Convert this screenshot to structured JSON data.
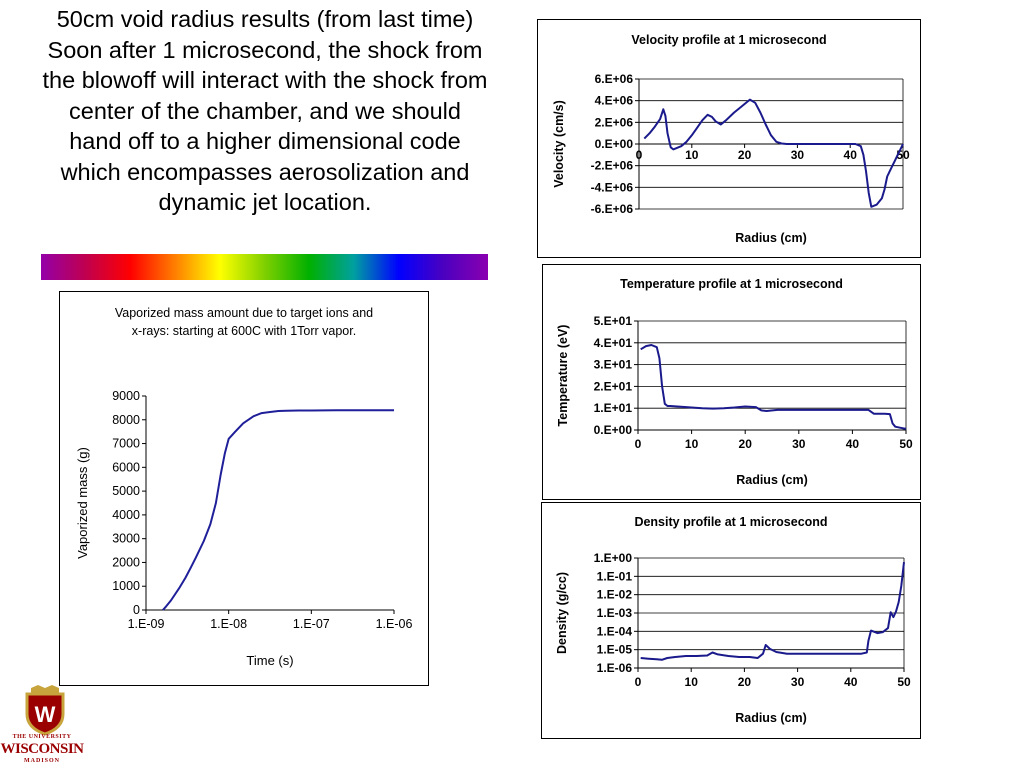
{
  "slide": {
    "title": "50cm void radius results (from last time) Soon after 1 microsecond, the shock from the blowoff will interact with the shock from center of the chamber, and we should hand off to a higher dimensional code which encompasses aerosolization and dynamic jet location."
  },
  "logo": {
    "line1": "THE UNIVERSITY",
    "line2": "WISCONSIN",
    "line3": "MADISON",
    "crest_letter": "W",
    "color": "#9b0000"
  },
  "colors": {
    "line": "#1a1a8c",
    "mass_line": "#1f1f99",
    "spectrum": [
      "#9400a8",
      "#c0004f",
      "#ff0000",
      "#ff7f00",
      "#ffff00",
      "#80d000",
      "#00b000",
      "#00a0a0",
      "#0000ff",
      "#4b00c0",
      "#8a00b0"
    ]
  },
  "chart_data": [
    {
      "id": "velocity",
      "type": "line",
      "title": "Velocity profile at 1 microsecond",
      "xlabel": "Radius (cm)",
      "ylabel": "Velocity (cm/s)",
      "xlim": [
        0,
        50
      ],
      "ylim": [
        -6000000,
        6000000
      ],
      "xticks": [
        "0",
        "10",
        "20",
        "30",
        "40",
        "50"
      ],
      "yticks": [
        "6.E+06",
        "4.E+06",
        "2.E+06",
        "0.E+00",
        "-2.E+06",
        "-4.E+06",
        "-6.E+06"
      ],
      "grid": true,
      "series": [
        {
          "x": [
            1,
            2,
            3,
            4,
            4.6,
            5,
            5.4,
            6,
            6.5,
            7,
            8,
            9,
            10,
            11,
            12,
            13,
            13.8,
            14.5,
            15.5,
            16.5,
            18,
            19.5,
            21,
            22,
            23,
            24,
            25,
            26,
            27,
            28,
            30,
            32,
            35,
            38,
            41,
            42,
            42.5,
            43,
            43.5,
            44,
            45,
            46,
            46.5,
            47,
            47.5,
            48,
            48.5,
            49,
            49.5,
            50
          ],
          "y": [
            500000,
            1000000,
            1600000,
            2300000,
            3200000,
            2600000,
            1000000,
            -300000,
            -500000,
            -400000,
            -200000,
            200000,
            800000,
            1500000,
            2200000,
            2700000,
            2500000,
            2100000,
            1800000,
            2200000,
            2900000,
            3500000,
            4100000,
            3800000,
            2900000,
            1800000,
            800000,
            200000,
            50000,
            0,
            0,
            0,
            0,
            0,
            0,
            -200000,
            -1000000,
            -2500000,
            -4500000,
            -5800000,
            -5600000,
            -5000000,
            -4200000,
            -3000000,
            -2500000,
            -2000000,
            -1500000,
            -1000000,
            -500000,
            0
          ]
        }
      ]
    },
    {
      "id": "temperature",
      "type": "line",
      "title": "Temperature profile at 1 microsecond",
      "xlabel": "Radius (cm)",
      "ylabel": "Temperature (eV)",
      "xlim": [
        0,
        50
      ],
      "ylim": [
        0,
        50
      ],
      "xticks": [
        "0",
        "10",
        "20",
        "30",
        "40",
        "50"
      ],
      "yticks": [
        "5.E+01",
        "4.E+01",
        "3.E+01",
        "2.E+01",
        "1.E+01",
        "0.E+00"
      ],
      "grid": true,
      "series": [
        {
          "x": [
            0.5,
            1.5,
            2.5,
            3.5,
            4,
            4.5,
            5,
            5.5,
            6,
            8,
            10,
            12,
            14,
            16,
            18,
            20,
            22,
            23,
            24,
            26,
            30,
            35,
            40,
            43,
            44,
            46,
            47,
            47.5,
            48,
            49,
            50
          ],
          "y": [
            37,
            38.5,
            39,
            38,
            33,
            20,
            12,
            11,
            11,
            10.7,
            10.3,
            10,
            9.8,
            10,
            10.3,
            10.8,
            10.5,
            9,
            8.7,
            9.2,
            9.2,
            9.2,
            9.2,
            9.2,
            7.5,
            7.5,
            7.3,
            3,
            1.5,
            1.0,
            0.5
          ]
        }
      ]
    },
    {
      "id": "density",
      "type": "line",
      "title": "Density profile at 1 microsecond",
      "xlabel": "Radius (cm)",
      "ylabel": "Density (g/cc)",
      "xlim": [
        0,
        50
      ],
      "yscale": "log",
      "ylim": [
        1e-06,
        1
      ],
      "xticks": [
        "0",
        "10",
        "20",
        "30",
        "40",
        "50"
      ],
      "yticks": [
        "1.E+00",
        "1.E-01",
        "1.E-02",
        "1.E-03",
        "1.E-04",
        "1.E-05",
        "1.E-06"
      ],
      "grid": true,
      "series": [
        {
          "x": [
            0.5,
            2,
            3.5,
            4.5,
            5.5,
            7,
            9,
            11,
            13,
            14,
            15,
            17,
            19,
            21,
            22.5,
            23.5,
            24,
            24.8,
            26,
            28,
            32,
            38,
            42,
            43,
            43.3,
            43.8,
            45,
            46,
            47,
            47.5,
            48,
            48.5,
            49,
            49.5,
            50
          ],
          "y": [
            3.5e-06,
            3.2e-06,
            3e-06,
            2.8e-06,
            3.5e-06,
            4e-06,
            4.5e-06,
            4.5e-06,
            4.8e-06,
            7e-06,
            5.5e-06,
            4.5e-06,
            4e-06,
            4e-06,
            3.5e-06,
            6e-06,
            1.8e-05,
            1.1e-05,
            7.5e-06,
            6e-06,
            6e-06,
            6e-06,
            6e-06,
            7e-06,
            3e-05,
            0.00011,
            8e-05,
            9e-05,
            0.00015,
            0.0011,
            0.0006,
            0.0012,
            0.004,
            0.03,
            0.6
          ]
        }
      ]
    },
    {
      "id": "vaporized-mass",
      "type": "line",
      "title": "Vaporized mass amount due to target ions and x-rays:  starting at 600C with 1Torr vapor.",
      "xlabel": "Time (s)",
      "ylabel": "Vaporized mass (g)",
      "xscale": "log",
      "xlim": [
        1e-09,
        1e-06
      ],
      "ylim": [
        0,
        9000
      ],
      "xticks": [
        "1.E-09",
        "1.E-08",
        "1.E-07",
        "1.E-06"
      ],
      "yticks": [
        "9000",
        "8000",
        "7000",
        "6000",
        "5000",
        "4000",
        "3000",
        "2000",
        "1000",
        "0"
      ],
      "grid": false,
      "series": [
        {
          "x": [
            1.6e-09,
            1.75e-09,
            2e-09,
            2.5e-09,
            3e-09,
            3.5e-09,
            4e-09,
            5e-09,
            6e-09,
            7e-09,
            8e-09,
            9e-09,
            1e-08,
            1.2e-08,
            1.5e-08,
            2e-08,
            2.5e-08,
            3e-08,
            4e-08,
            5e-08,
            7e-08,
            1e-07,
            2e-07,
            5e-07,
            1e-06
          ],
          "y": [
            0,
            150,
            400,
            900,
            1350,
            1800,
            2200,
            2900,
            3600,
            4500,
            5700,
            6600,
            7200,
            7500,
            7850,
            8150,
            8280,
            8320,
            8370,
            8380,
            8390,
            8390,
            8400,
            8400,
            8400
          ]
        }
      ]
    }
  ]
}
